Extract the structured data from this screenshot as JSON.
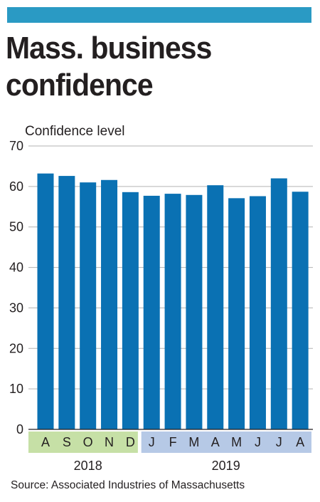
{
  "header": {
    "title": "Mass. business confidence"
  },
  "source": "Source: Associated Industries of Massachusetts",
  "colors": {
    "bar": "#0a71b3",
    "top_bar": "#2a9ac4",
    "band_2018": "#c6e0a6",
    "band_2019": "#b6c9e6",
    "grid": "#b3b3b3"
  },
  "chart_data": {
    "type": "bar",
    "title": "Mass. business confidence",
    "ylabel": "Confidence level",
    "xlabel": "",
    "ylim": [
      0,
      70
    ],
    "yticks": [
      0,
      10,
      20,
      30,
      40,
      50,
      60,
      70
    ],
    "grid": true,
    "categories": [
      "A",
      "S",
      "O",
      "N",
      "D",
      "J",
      "F",
      "M",
      "A",
      "M",
      "J",
      "J",
      "A"
    ],
    "values": [
      63.2,
      62.6,
      61.0,
      61.6,
      58.6,
      57.7,
      58.2,
      57.9,
      60.3,
      57.1,
      57.6,
      62.0,
      58.7
    ],
    "year_groups": [
      {
        "label": "2018",
        "start": 0,
        "end": 4
      },
      {
        "label": "2019",
        "start": 5,
        "end": 12
      }
    ]
  }
}
